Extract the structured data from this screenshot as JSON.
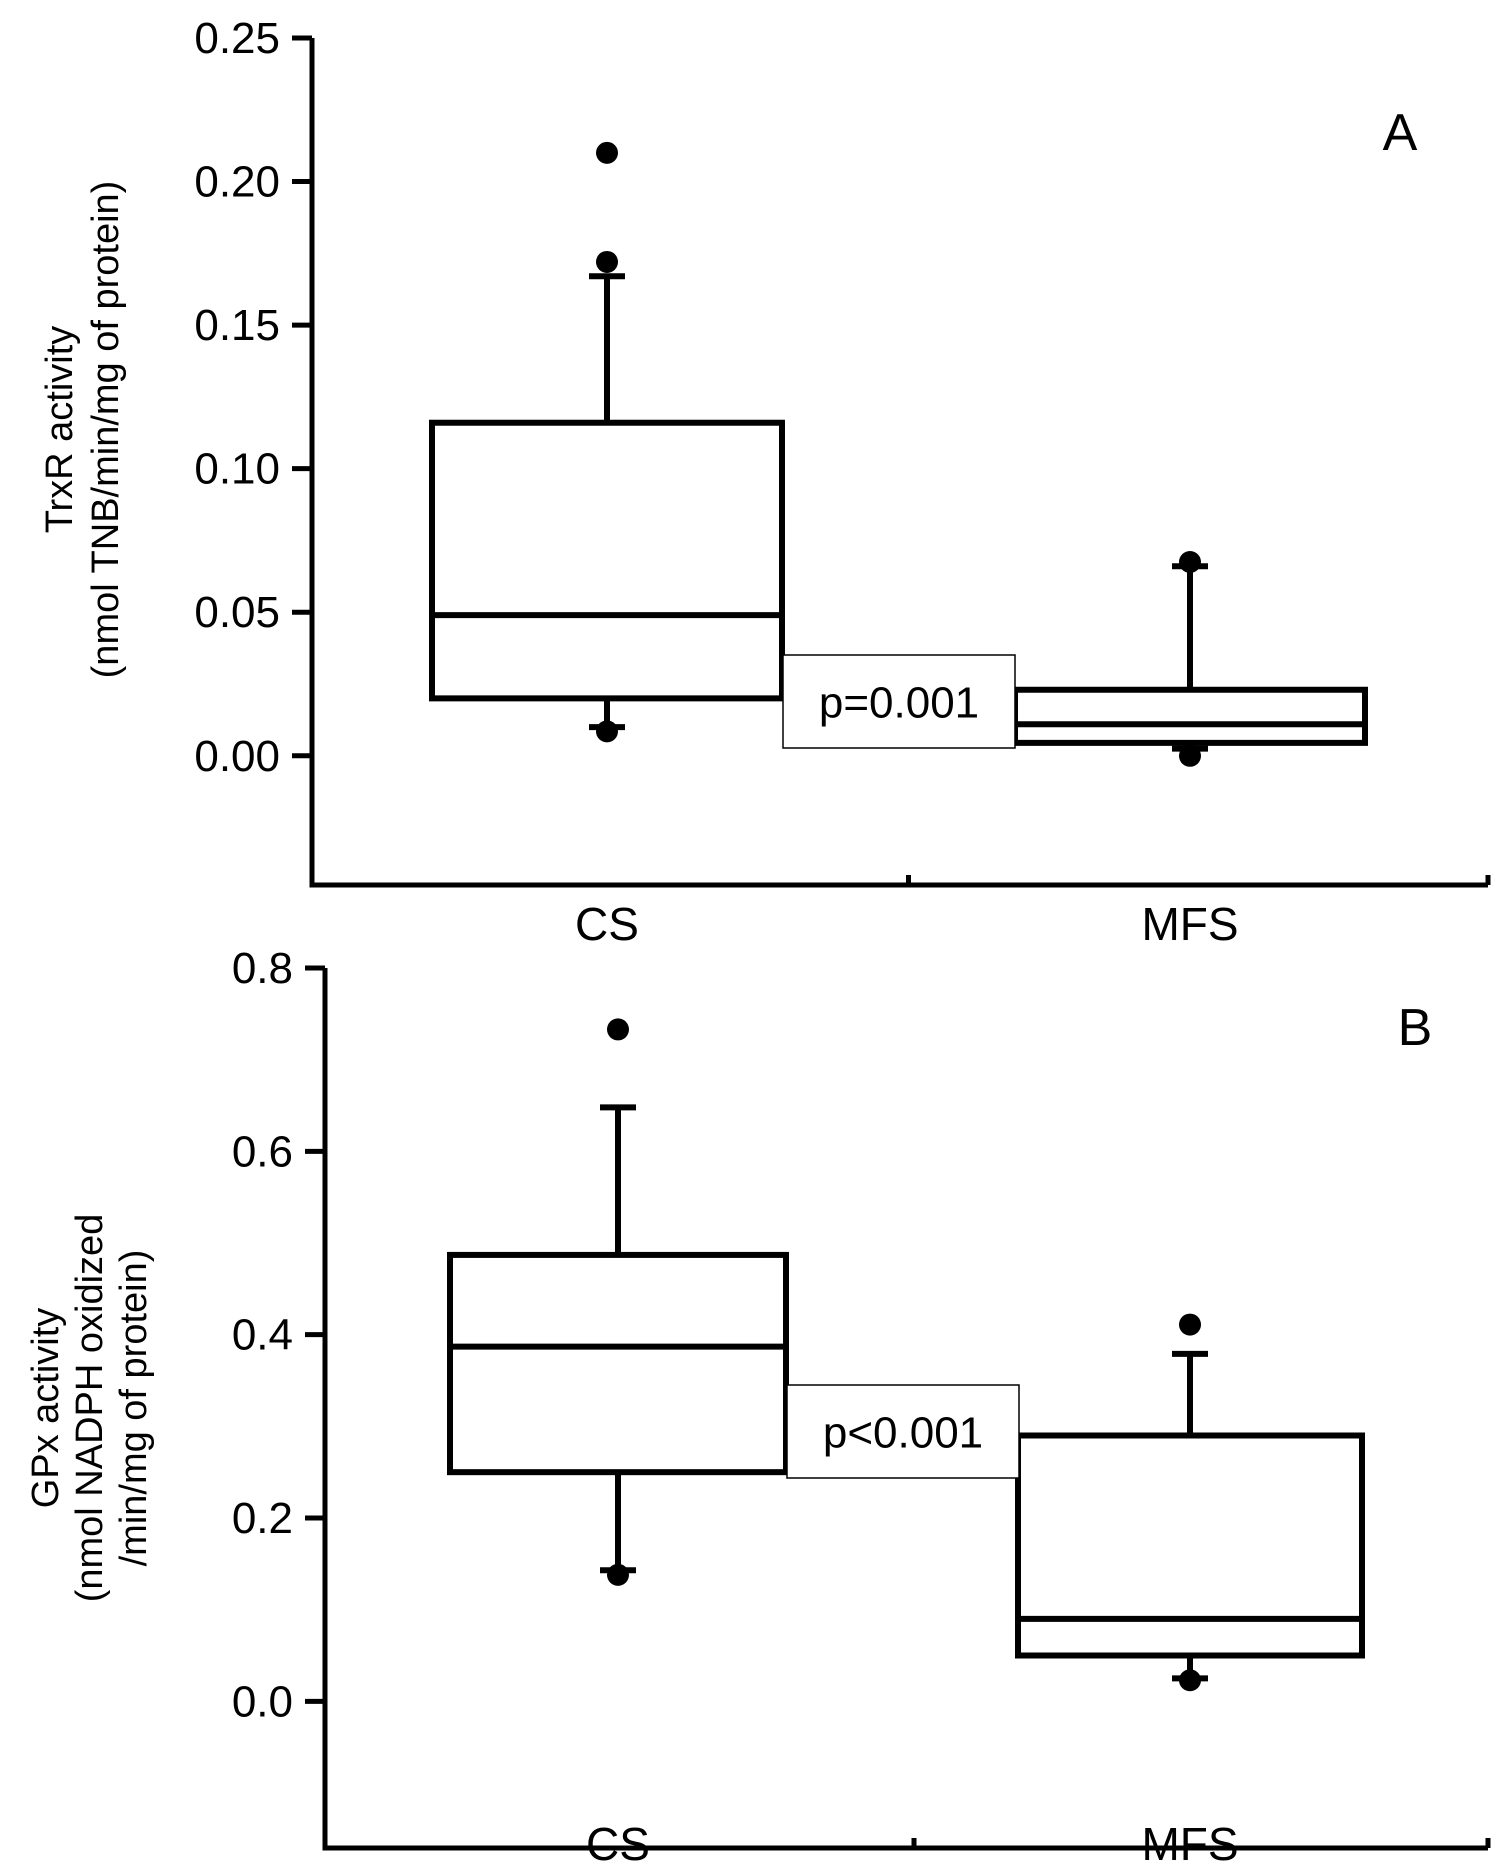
{
  "chart_data": [
    {
      "type": "box",
      "panel_label": "A",
      "ylabel_line1": "TrxR activity",
      "ylabel_line2": "(nmol TNB/min/mg of protein)",
      "ylim": [
        -0.045,
        0.25
      ],
      "yticks": [
        "0.25",
        "0.20",
        "0.15",
        "0.10",
        "0.05",
        "0.00"
      ],
      "ytick_values": [
        0.25,
        0.2,
        0.15,
        0.1,
        0.05,
        0.0
      ],
      "categories": [
        "CS",
        "MFS"
      ],
      "boxes": [
        {
          "name": "CS",
          "whisker_low": 0.01,
          "q1": 0.02,
          "median": 0.049,
          "q3": 0.116,
          "whisker_high": 0.167,
          "outliers": [
            0.0085,
            0.172,
            0.21
          ]
        },
        {
          "name": "MFS",
          "whisker_low": 0.0025,
          "q1": 0.0045,
          "median": 0.011,
          "q3": 0.023,
          "whisker_high": 0.066,
          "outliers": [
            0.0,
            0.0675
          ]
        }
      ],
      "annotation": "p=0.001"
    },
    {
      "type": "box",
      "panel_label": "B",
      "ylabel_line1": "GPx activity",
      "ylabel_line2": "(nmol NADPH oxidized",
      "ylabel_line3": "/min/mg of protein)",
      "ylim": [
        -0.16,
        0.8
      ],
      "yticks": [
        "0.8",
        "0.6",
        "0.4",
        "0.2",
        "0.0"
      ],
      "ytick_values": [
        0.8,
        0.6,
        0.4,
        0.2,
        0.0
      ],
      "categories": [
        "CS",
        "MFS"
      ],
      "boxes": [
        {
          "name": "CS",
          "whisker_low": 0.143,
          "q1": 0.25,
          "median": 0.387,
          "q3": 0.487,
          "whisker_high": 0.648,
          "outliers": [
            0.138,
            0.733
          ]
        },
        {
          "name": "MFS",
          "whisker_low": 0.025,
          "q1": 0.05,
          "median": 0.09,
          "q3": 0.29,
          "whisker_high": 0.379,
          "outliers": [
            0.023,
            0.411
          ]
        }
      ],
      "annotation": "p<0.001"
    }
  ]
}
